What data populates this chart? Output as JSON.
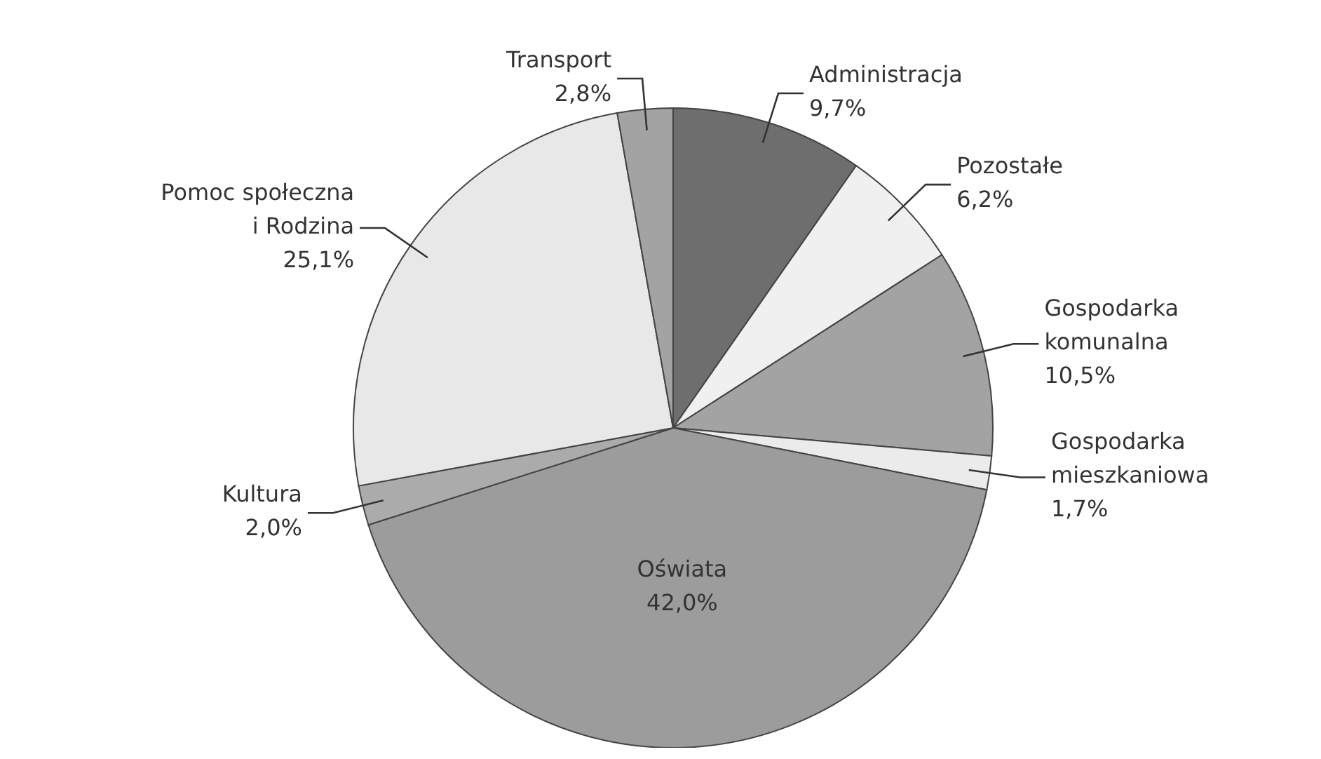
{
  "chart_data": {
    "type": "pie",
    "categories": [
      "Administracja",
      "Pozostałe",
      "Gospodarka komunalna",
      "Gospodarka mieszkaniowa",
      "Oświata",
      "Kultura",
      "Pomoc społeczna i Rodzina",
      "Transport"
    ],
    "values": [
      9.7,
      6.2,
      10.5,
      1.7,
      42.0,
      2.0,
      25.1,
      2.8
    ],
    "value_labels": [
      "9,7%",
      "6,2%",
      "10,5%",
      "1,7%",
      "42,0%",
      "2,0%",
      "25,1%",
      "2,8%"
    ],
    "colors": [
      "#6e6e6e",
      "#f0f0f0",
      "#a3a3a3",
      "#ebebeb",
      "#9c9c9c",
      "#ababab",
      "#e8e8e8",
      "#a3a3a3"
    ],
    "legend": false
  }
}
